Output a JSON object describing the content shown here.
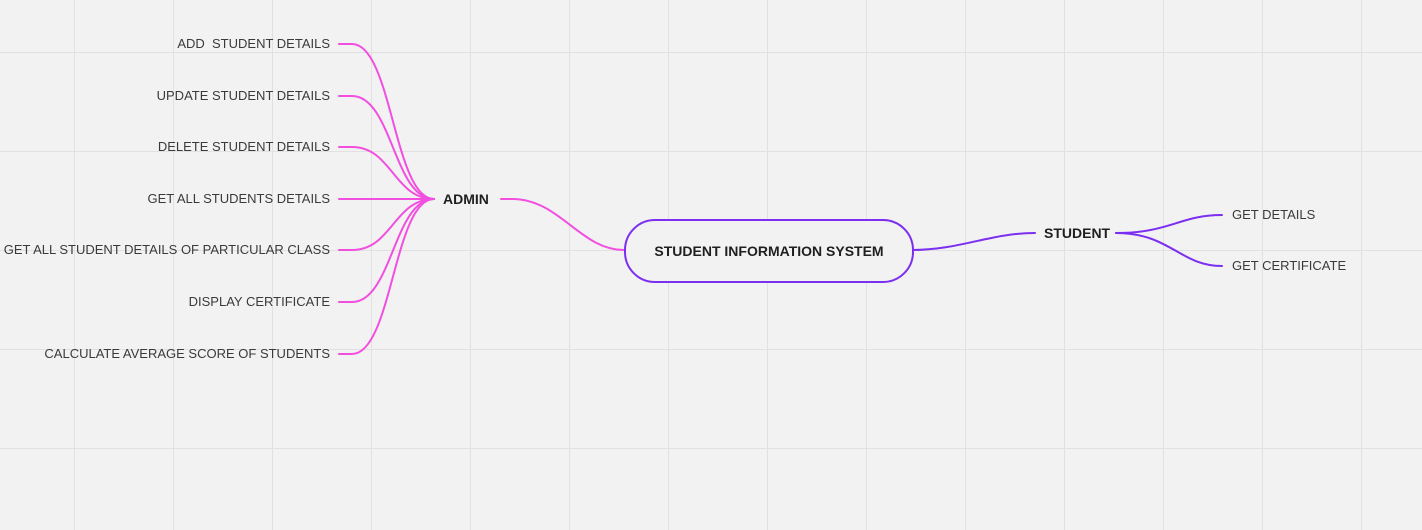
{
  "central": {
    "label": "STUDENT INFORMATION SYSTEM"
  },
  "admin": {
    "label": "ADMIN",
    "items": [
      "ADD  STUDENT DETAILS",
      "UPDATE STUDENT DETAILS",
      "DELETE STUDENT DETAILS",
      "GET ALL STUDENTS DETAILS",
      "GET ALL STUDENT DETAILS OF PARTICULAR CLASS",
      "DISPLAY CERTIFICATE",
      "CALCULATE AVERAGE SCORE OF STUDENTS"
    ]
  },
  "student": {
    "label": "STUDENT",
    "items": [
      "GET DETAILS",
      "GET CERTIFICATE"
    ]
  },
  "colors": {
    "admin_branch": "#f24fe0",
    "student_branch": "#7b2ff0",
    "central_border": "#7b2ff0",
    "grid": "#e1e1e1",
    "background": "#f2f2f2"
  },
  "icons": []
}
